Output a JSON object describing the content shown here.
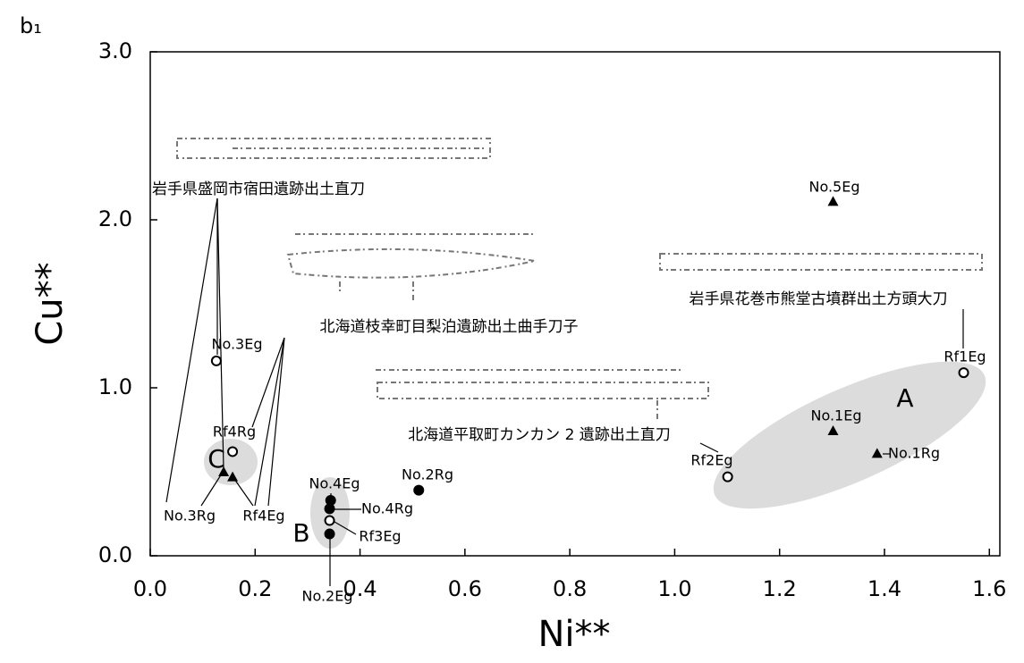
{
  "chart_data": {
    "type": "scatter",
    "panel_label": "b₁",
    "xlabel": "Ni**",
    "ylabel": "Cu**",
    "xlim": [
      0,
      1.62
    ],
    "ylim": [
      0,
      3
    ],
    "xticks": [
      {
        "value": 0,
        "label": "0.0"
      },
      0.2,
      0.4,
      0.6,
      0.8,
      {
        "value": 1,
        "label": "1.0"
      },
      1.2,
      1.4,
      1.6
    ],
    "yticks": [
      {
        "value": 0,
        "label": "0.0"
      },
      {
        "value": 1,
        "label": "1.0"
      },
      {
        "value": 2,
        "label": "2.0"
      },
      {
        "value": 3,
        "label": "3.0"
      }
    ],
    "series": [
      {
        "marker": "open-circle",
        "color": "#000000",
        "x": [
          0.126,
          0.157,
          0.342,
          1.551,
          1.101
        ],
        "values": [
          1.16,
          0.62,
          0.21,
          1.09,
          0.47
        ],
        "point_labels": [
          "No.3Eg",
          "Rf4Rg",
          "Rf3Eg",
          "Rf1Eg",
          "Rf2Eg"
        ]
      },
      {
        "marker": "filled-circle",
        "color": "#000000",
        "x": [
          0.344,
          0.342,
          0.342,
          0.512
        ],
        "values": [
          0.33,
          0.28,
          0.13,
          0.39
        ],
        "point_labels": [
          "No.4Eg",
          "No.4Rg",
          "No.2Eg",
          "No.2Rg"
        ]
      },
      {
        "marker": "triangle",
        "color": "#000000",
        "x": [
          0.14,
          0.157,
          1.302,
          1.302,
          1.386
        ],
        "values": [
          0.5,
          0.47,
          2.11,
          0.745,
          0.61
        ],
        "point_labels": [
          "No.3Rg",
          "Rf4Eg",
          "No.5Eg",
          "No.1Eg",
          "No.1Rg"
        ]
      }
    ],
    "groups": [
      "A",
      "B",
      "C"
    ],
    "annotations": [
      "岩手県盛岡市宿田遺跡出土直刀",
      "北海道枝幸町目梨泊遺跡出土曲手刀子",
      "北海道平取町カンカン 2 遺跡出土直刀",
      "岩手県花巻市熊堂古墳群出土方頭大刀"
    ]
  }
}
